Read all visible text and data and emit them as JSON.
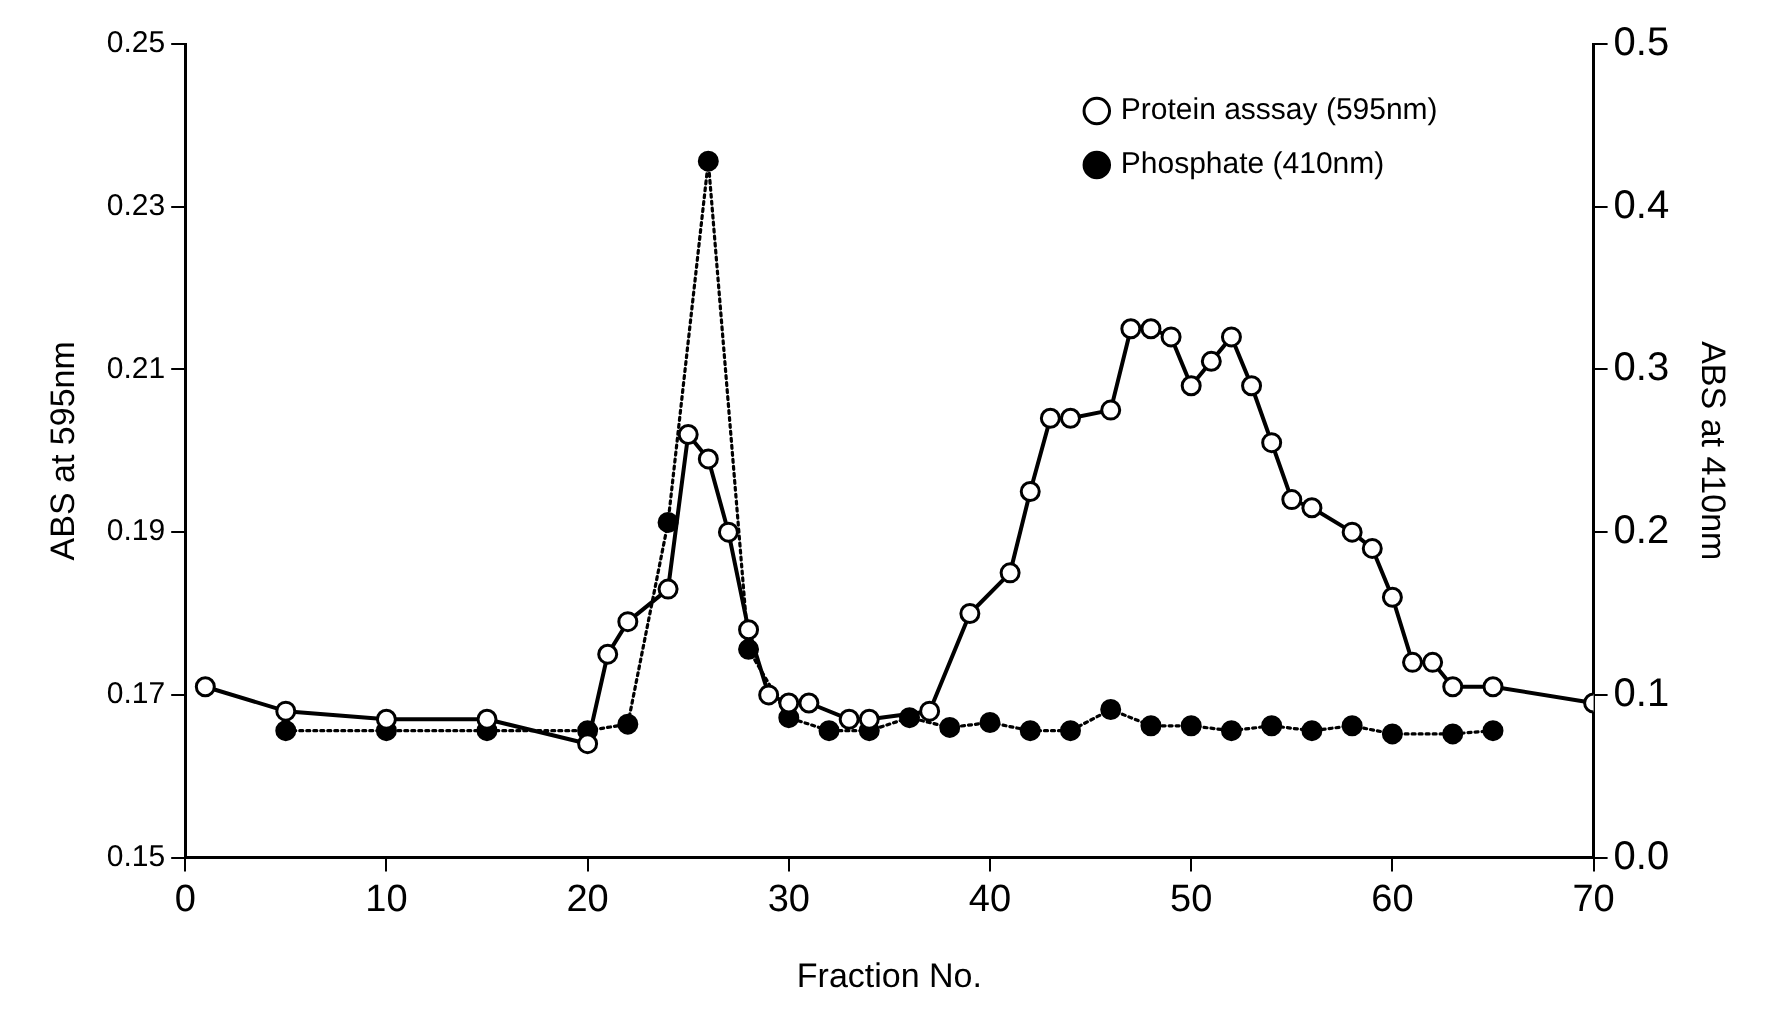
{
  "chart_data": {
    "type": "line",
    "xlabel": "Fraction No.",
    "ylabel": "ABS at 595nm",
    "y2label": "ABS at 410nm",
    "xlim": [
      0,
      70
    ],
    "xticks": [
      0,
      10,
      20,
      30,
      40,
      50,
      60,
      70
    ],
    "ylim": [
      0.15,
      0.25
    ],
    "yticks": [
      0.15,
      0.17,
      0.19,
      0.21,
      0.23,
      0.25
    ],
    "y2lim": [
      0,
      0.5
    ],
    "y2ticks": [
      {
        "value": 0,
        "label": "0.0"
      },
      0.1,
      0.2,
      0.3,
      0.4,
      0.5
    ],
    "grid": false,
    "legend": "top right",
    "marker": "circle",
    "series": [
      {
        "name": "Protein asssay (595nm)",
        "color": "#000000",
        "line_style": "solid",
        "x": [
          1,
          5,
          10,
          15,
          20,
          21,
          22,
          24,
          25,
          26,
          27,
          28,
          29,
          30,
          31,
          33,
          34,
          37,
          39,
          41,
          42,
          43,
          44,
          46,
          47,
          48,
          49,
          50,
          51,
          52,
          53,
          54,
          55,
          56,
          58,
          59,
          60,
          61,
          62,
          63,
          65,
          70
        ],
        "values": [
          0.171,
          0.168,
          0.167,
          0.167,
          0.164,
          0.175,
          0.179,
          0.183,
          0.202,
          0.199,
          0.19,
          0.178,
          0.17,
          0.169,
          0.169,
          0.167,
          0.167,
          0.168,
          0.18,
          0.185,
          0.195,
          0.204,
          0.204,
          0.205,
          0.215,
          0.215,
          0.214,
          0.208,
          0.211,
          0.214,
          0.208,
          0.201,
          0.194,
          0.193,
          0.19,
          0.188,
          0.182,
          0.174,
          0.174,
          0.171,
          0.171,
          0.169
        ]
      },
      {
        "name": "Phosphate (410nm)",
        "color": "#000000",
        "line_style": "dotted",
        "axis": "y2",
        "x": [
          5,
          10,
          15,
          20,
          22,
          24,
          26,
          28,
          30,
          32,
          34,
          36,
          38,
          40,
          42,
          44,
          46,
          48,
          50,
          52,
          54,
          56,
          58,
          60,
          63,
          65
        ],
        "values": [
          0.078,
          0.078,
          0.078,
          0.078,
          0.082,
          0.206,
          0.428,
          0.128,
          0.086,
          0.078,
          0.078,
          0.086,
          0.08,
          0.083,
          0.078,
          0.078,
          0.091,
          0.081,
          0.081,
          0.078,
          0.081,
          0.078,
          0.081,
          0.076,
          0.076,
          0.078
        ]
      }
    ]
  }
}
